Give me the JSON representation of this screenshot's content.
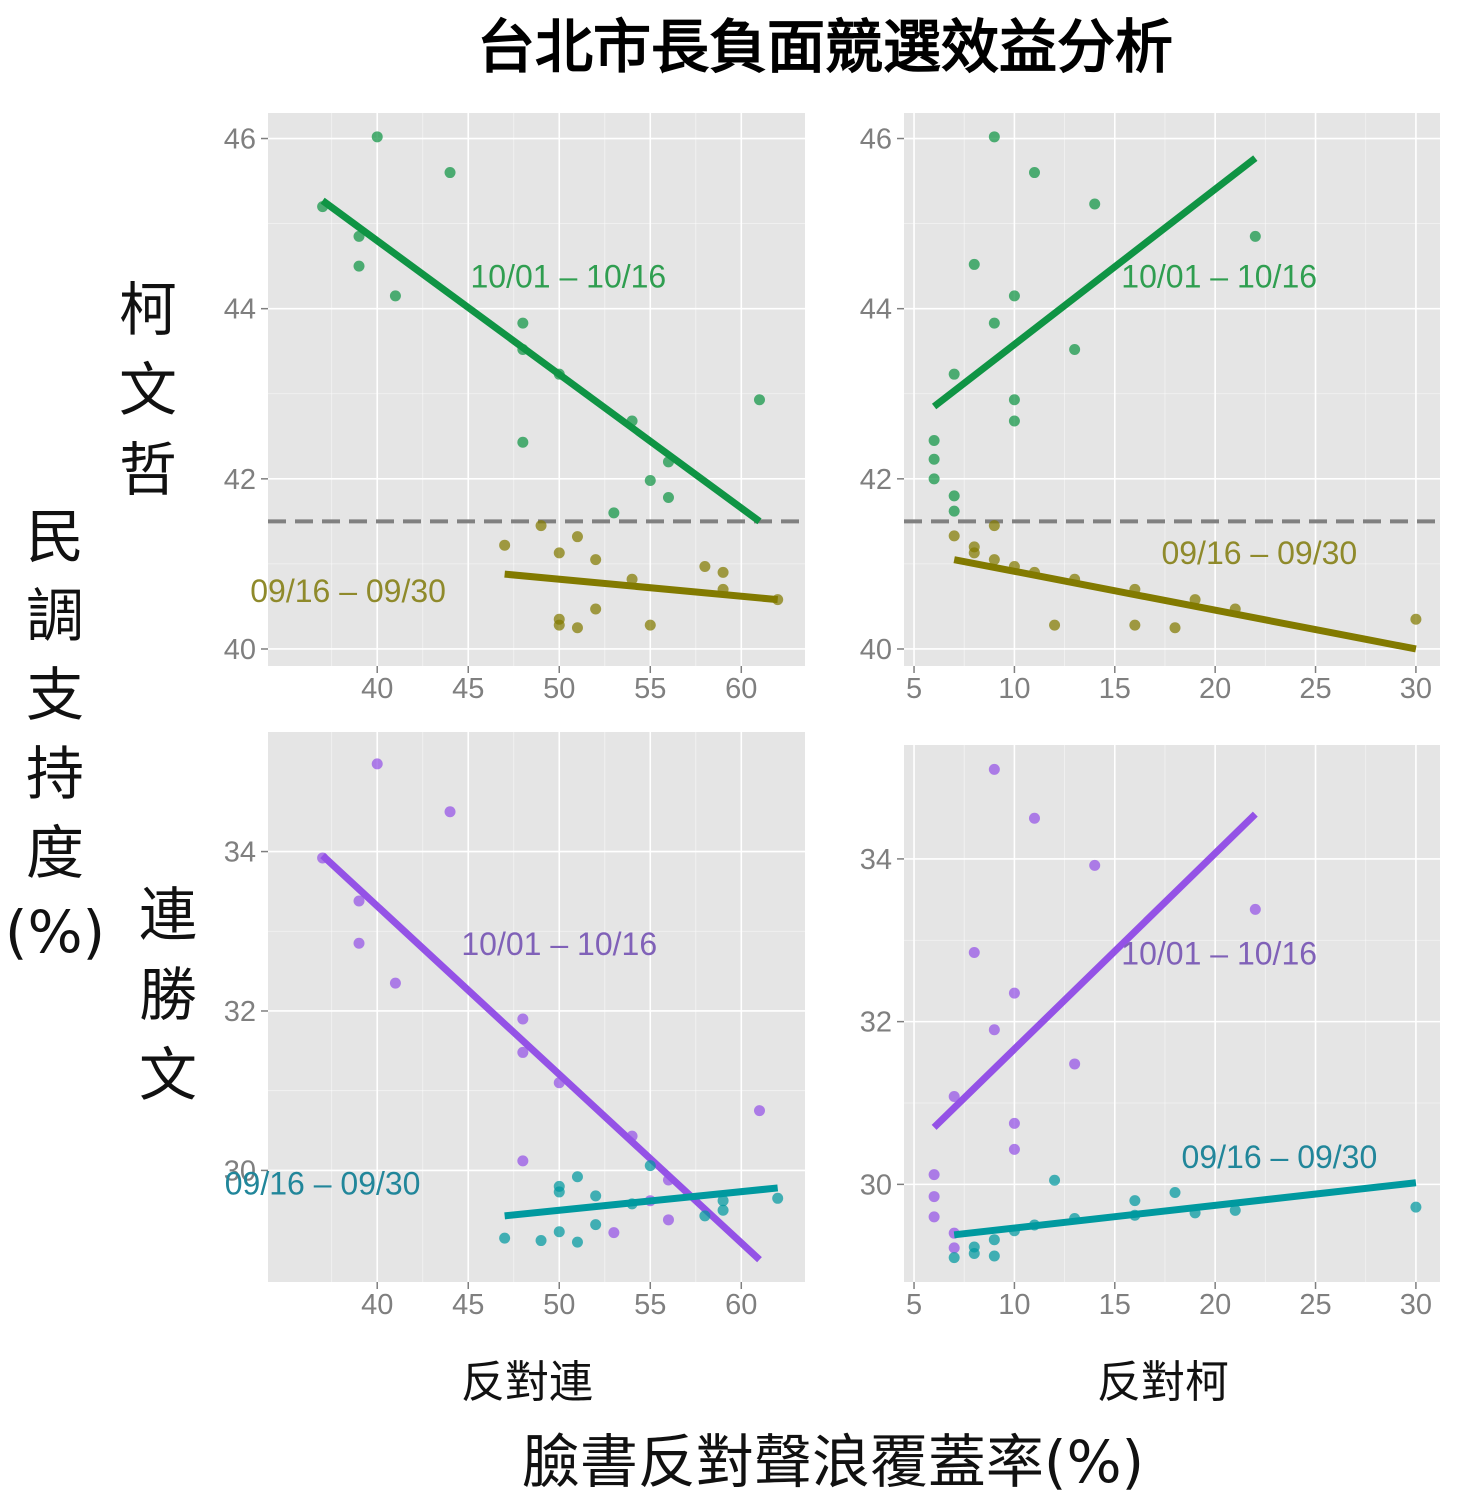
{
  "title": "台北市長負面競選效益分析",
  "y_axis_title": [
    "民",
    "調",
    "支",
    "持",
    "度",
    "(%)"
  ],
  "x_axis_title": "臉書反對聲浪覆蓋率(%)",
  "row_labels": [
    "柯文哲",
    "連勝文"
  ],
  "col_labels": [
    "反對連",
    "反對柯"
  ],
  "colors": {
    "panel_bg": "#e5e5e5",
    "grid": "#ffffff",
    "ref_line": "#808080",
    "ko_late": "#0f9444",
    "ko_early": "#827a00",
    "lien_late": "#9452e6",
    "lien_early": "#00999f",
    "ko_late_text": "#2f9e50",
    "ko_early_text": "#8f8a2b",
    "lien_late_text": "#8061b8",
    "lien_early_text": "#21869a"
  },
  "chart_data": [
    {
      "type": "scatter",
      "row": "柯文哲",
      "col": "反對連",
      "xlim": [
        34,
        63.5
      ],
      "ylim": [
        39.8,
        46.3
      ],
      "xticks": [
        40,
        45,
        50,
        55,
        60
      ],
      "yticks": [
        40,
        42,
        44,
        46
      ],
      "show_x_ticks": true,
      "ref_line_y": 41.5,
      "series": [
        {
          "name": "10/01 – 10/16",
          "color_key": "ko_late",
          "text_color_key": "ko_late_text",
          "points": [
            [
              37,
              45.2
            ],
            [
              39,
              44.85
            ],
            [
              39,
              44.5
            ],
            [
              40,
              46.02
            ],
            [
              41,
              44.15
            ],
            [
              44,
              45.6
            ],
            [
              48,
              43.83
            ],
            [
              48,
              43.52
            ],
            [
              48,
              42.43
            ],
            [
              50,
              43.23
            ],
            [
              53,
              41.6
            ],
            [
              54,
              42.68
            ],
            [
              55,
              41.98
            ],
            [
              56,
              42.2
            ],
            [
              56,
              41.78
            ],
            [
              61,
              42.93
            ]
          ],
          "fit": [
            [
              37,
              45.27
            ],
            [
              61,
              41.5
            ]
          ],
          "label": "10/01 – 10/16",
          "label_at": [
            50.5,
            44.25
          ]
        },
        {
          "name": "09/16 – 09/30",
          "color_key": "ko_early",
          "text_color_key": "ko_early_text",
          "points": [
            [
              47,
              41.22
            ],
            [
              49,
              41.45
            ],
            [
              50,
              41.13
            ],
            [
              50,
              40.35
            ],
            [
              50,
              40.28
            ],
            [
              51,
              41.32
            ],
            [
              51,
              40.25
            ],
            [
              52,
              41.05
            ],
            [
              52,
              40.47
            ],
            [
              54,
              40.82
            ],
            [
              55,
              40.28
            ],
            [
              58,
              40.97
            ],
            [
              59,
              40.9
            ],
            [
              59,
              40.7
            ],
            [
              62,
              40.58
            ]
          ],
          "fit": [
            [
              47,
              40.88
            ],
            [
              62,
              40.58
            ]
          ],
          "label": "09/16 – 09/30",
          "label_at": [
            38.4,
            40.55
          ]
        }
      ]
    },
    {
      "type": "scatter",
      "row": "柯文哲",
      "col": "反對柯",
      "xlim": [
        4.5,
        31.2
      ],
      "ylim": [
        39.8,
        46.3
      ],
      "xticks": [
        5,
        10,
        15,
        20,
        25,
        30
      ],
      "yticks": [
        40,
        42,
        44,
        46
      ],
      "show_x_ticks": true,
      "ref_line_y": 41.5,
      "series": [
        {
          "name": "10/01 – 10/16",
          "color_key": "ko_late",
          "text_color_key": "ko_late_text",
          "points": [
            [
              6,
              42.45
            ],
            [
              6,
              42.23
            ],
            [
              6,
              42.0
            ],
            [
              7,
              43.23
            ],
            [
              7,
              41.8
            ],
            [
              7,
              41.62
            ],
            [
              8,
              44.52
            ],
            [
              9,
              46.02
            ],
            [
              9,
              43.83
            ],
            [
              10,
              44.15
            ],
            [
              10,
              42.93
            ],
            [
              10,
              42.68
            ],
            [
              11,
              45.6
            ],
            [
              13,
              43.52
            ],
            [
              14,
              45.23
            ],
            [
              22,
              44.85
            ]
          ],
          "fit": [
            [
              6,
              42.85
            ],
            [
              22,
              45.77
            ]
          ],
          "label": "10/01 – 10/16",
          "label_at": [
            20.2,
            44.25
          ]
        },
        {
          "name": "09/16 – 09/30",
          "color_key": "ko_early",
          "text_color_key": "ko_early_text",
          "points": [
            [
              7,
              41.33
            ],
            [
              8,
              41.2
            ],
            [
              8,
              41.13
            ],
            [
              9,
              41.45
            ],
            [
              9,
              41.05
            ],
            [
              10,
              40.97
            ],
            [
              11,
              40.9
            ],
            [
              12,
              40.28
            ],
            [
              13,
              40.82
            ],
            [
              16,
              40.7
            ],
            [
              16,
              40.28
            ],
            [
              18,
              40.25
            ],
            [
              19,
              40.58
            ],
            [
              21,
              40.47
            ],
            [
              30,
              40.35
            ]
          ],
          "fit": [
            [
              7,
              41.05
            ],
            [
              30,
              40.0
            ]
          ],
          "label": "09/16 – 09/30",
          "label_at": [
            22.2,
            41.0
          ]
        }
      ]
    },
    {
      "type": "scatter",
      "row": "連勝文",
      "col": "反對連",
      "xlim": [
        34,
        63.5
      ],
      "ylim": [
        28.6,
        35.5
      ],
      "xticks": [
        40,
        45,
        50,
        55,
        60
      ],
      "yticks": [
        30,
        32,
        34
      ],
      "show_x_ticks": true,
      "series": [
        {
          "name": "10/01 – 10/16",
          "color_key": "lien_late",
          "text_color_key": "lien_late_text",
          "points": [
            [
              37,
              33.92
            ],
            [
              39,
              33.38
            ],
            [
              39,
              32.85
            ],
            [
              40,
              35.1
            ],
            [
              41,
              32.35
            ],
            [
              44,
              34.5
            ],
            [
              48,
              31.9
            ],
            [
              48,
              31.48
            ],
            [
              48,
              30.12
            ],
            [
              50,
              31.1
            ],
            [
              53,
              29.22
            ],
            [
              54,
              30.43
            ],
            [
              55,
              29.62
            ],
            [
              56,
              29.88
            ],
            [
              56,
              29.38
            ],
            [
              61,
              30.75
            ]
          ],
          "fit": [
            [
              37,
              33.95
            ],
            [
              61,
              28.88
            ]
          ],
          "label": "10/01 – 10/16",
          "label_at": [
            50.0,
            32.7
          ]
        },
        {
          "name": "09/16 – 09/30",
          "color_key": "lien_early",
          "text_color_key": "lien_early_text",
          "points": [
            [
              47,
              29.15
            ],
            [
              49,
              29.12
            ],
            [
              50,
              29.8
            ],
            [
              50,
              29.73
            ],
            [
              50,
              29.23
            ],
            [
              51,
              29.92
            ],
            [
              51,
              29.1
            ],
            [
              52,
              29.68
            ],
            [
              52,
              29.32
            ],
            [
              54,
              29.58
            ],
            [
              55,
              30.06
            ],
            [
              58,
              29.43
            ],
            [
              59,
              29.62
            ],
            [
              59,
              29.5
            ],
            [
              62,
              29.65
            ]
          ],
          "fit": [
            [
              47,
              29.43
            ],
            [
              62,
              29.78
            ]
          ],
          "label": "09/16 – 09/30",
          "label_at": [
            37.0,
            29.7
          ]
        }
      ]
    },
    {
      "type": "scatter",
      "row": "連勝文",
      "col": "反對柯",
      "xlim": [
        4.5,
        31.2
      ],
      "ylim": [
        28.8,
        35.4
      ],
      "xticks": [
        5,
        10,
        15,
        20,
        25,
        30
      ],
      "yticks": [
        30,
        32,
        34
      ],
      "show_x_ticks": true,
      "series": [
        {
          "name": "10/01 – 10/16",
          "color_key": "lien_late",
          "text_color_key": "lien_late_text",
          "points": [
            [
              6,
              30.12
            ],
            [
              6,
              29.85
            ],
            [
              6,
              29.6
            ],
            [
              7,
              31.08
            ],
            [
              7,
              29.4
            ],
            [
              7,
              29.22
            ],
            [
              8,
              32.85
            ],
            [
              9,
              35.1
            ],
            [
              9,
              31.9
            ],
            [
              10,
              32.35
            ],
            [
              10,
              30.75
            ],
            [
              10,
              30.43
            ],
            [
              11,
              34.5
            ],
            [
              13,
              31.48
            ],
            [
              14,
              33.92
            ],
            [
              22,
              33.38
            ]
          ],
          "fit": [
            [
              6,
              30.7
            ],
            [
              22,
              34.55
            ]
          ],
          "label": "10/01 – 10/16",
          "label_at": [
            20.2,
            32.7
          ]
        },
        {
          "name": "09/16 – 09/30",
          "color_key": "lien_early",
          "text_color_key": "lien_early_text",
          "points": [
            [
              7,
              29.1
            ],
            [
              8,
              29.23
            ],
            [
              8,
              29.15
            ],
            [
              9,
              29.32
            ],
            [
              9,
              29.12
            ],
            [
              10,
              29.43
            ],
            [
              11,
              29.5
            ],
            [
              12,
              30.05
            ],
            [
              13,
              29.58
            ],
            [
              16,
              29.8
            ],
            [
              16,
              29.62
            ],
            [
              18,
              29.9
            ],
            [
              19,
              29.65
            ],
            [
              21,
              29.68
            ],
            [
              30,
              29.72
            ]
          ],
          "fit": [
            [
              7,
              29.38
            ],
            [
              30,
              30.02
            ]
          ],
          "label": "09/16 – 09/30",
          "label_at": [
            23.2,
            30.2
          ]
        }
      ]
    }
  ]
}
